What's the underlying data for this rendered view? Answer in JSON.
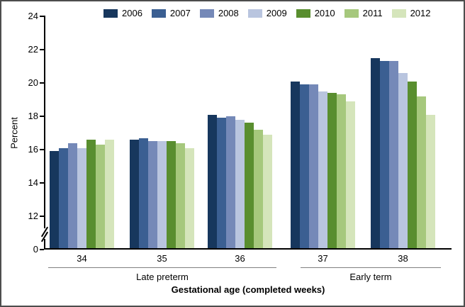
{
  "chart_data": {
    "type": "bar",
    "title": "",
    "ylabel": "Percent",
    "xlabel": "Gestational age (completed weeks)",
    "categories": [
      "34",
      "35",
      "36",
      "37",
      "38"
    ],
    "category_axis_groups": [
      {
        "label": "Late preterm",
        "categories": [
          "34",
          "35",
          "36"
        ]
      },
      {
        "label": "Early term",
        "categories": [
          "37",
          "38"
        ]
      }
    ],
    "series": [
      {
        "name": "2006",
        "color": "#17375D",
        "values": [
          15.9,
          16.6,
          18.1,
          20.1,
          21.5
        ]
      },
      {
        "name": "2007",
        "color": "#3B5F92",
        "values": [
          16.1,
          16.7,
          17.9,
          19.9,
          21.3
        ]
      },
      {
        "name": "2008",
        "color": "#7589B8",
        "values": [
          16.4,
          16.5,
          18.0,
          19.9,
          21.3
        ]
      },
      {
        "name": "2009",
        "color": "#B9C5DF",
        "values": [
          16.1,
          16.5,
          17.8,
          19.5,
          20.6
        ]
      },
      {
        "name": "2010",
        "color": "#598E2F",
        "values": [
          16.6,
          16.5,
          17.6,
          19.4,
          20.1
        ]
      },
      {
        "name": "2011",
        "color": "#A6C87D",
        "values": [
          16.3,
          16.4,
          17.2,
          19.3,
          19.2
        ]
      },
      {
        "name": "2012",
        "color": "#D5E5BB",
        "values": [
          16.6,
          16.1,
          16.9,
          18.9,
          18.1
        ]
      }
    ],
    "yticks": [
      0,
      12,
      14,
      16,
      18,
      20,
      22,
      24
    ],
    "ylim": [
      0,
      24
    ],
    "axis_break_between": [
      0,
      12
    ],
    "grid": false,
    "legend_position": "top"
  }
}
